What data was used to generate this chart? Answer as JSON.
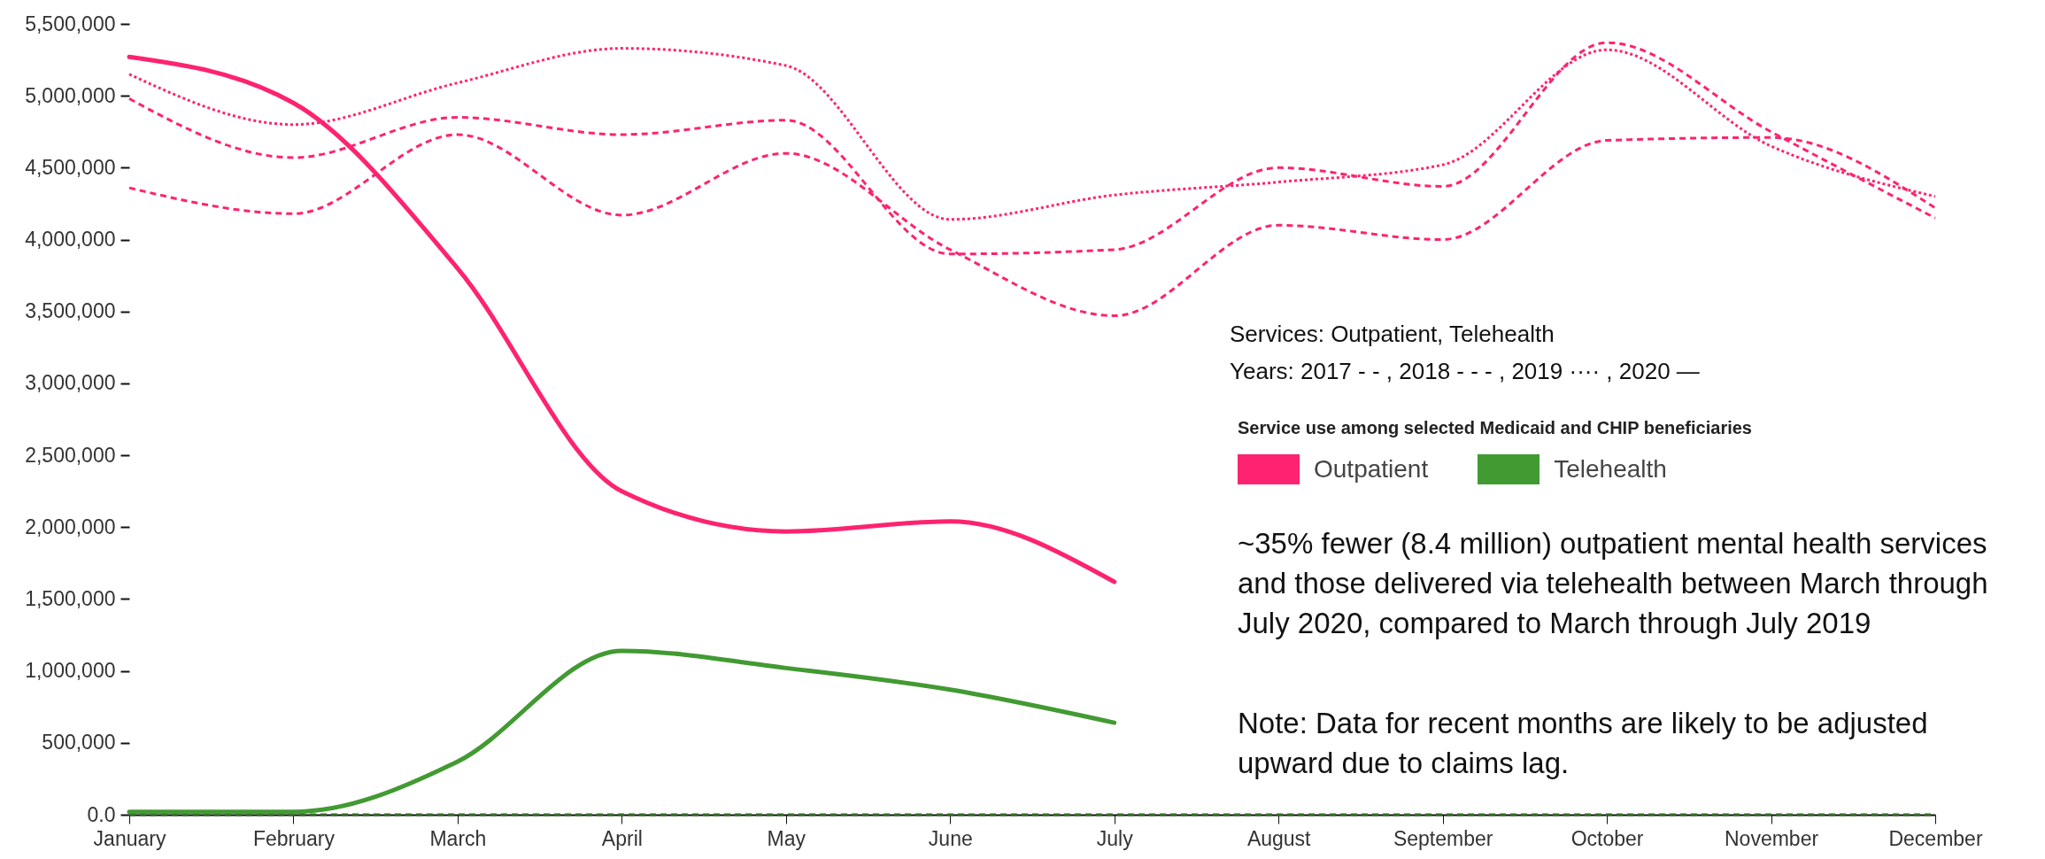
{
  "chart_data": {
    "type": "line",
    "categories": [
      "January",
      "February",
      "March",
      "April",
      "May",
      "June",
      "July",
      "August",
      "September",
      "October",
      "November",
      "December"
    ],
    "ylim": [
      0,
      5500000
    ],
    "yticks": [
      {
        "value": 0,
        "label": "0.0"
      },
      {
        "value": 500000,
        "label": "500,000"
      },
      {
        "value": 1000000,
        "label": "1,000,000"
      },
      {
        "value": 1500000,
        "label": "1,500,000"
      },
      {
        "value": 2000000,
        "label": "2,000,000"
      },
      {
        "value": 2500000,
        "label": "2,500,000"
      },
      {
        "value": 3000000,
        "label": "3,000,000"
      },
      {
        "value": 3500000,
        "label": "3,500,000"
      },
      {
        "value": 4000000,
        "label": "4,000,000"
      },
      {
        "value": 4500000,
        "label": "4,500,000"
      },
      {
        "value": 5000000,
        "label": "5,000,000"
      },
      {
        "value": 5500000,
        "label": "5,500,000"
      }
    ],
    "legend": "right",
    "legend_title": "Service use among selected Medicaid and CHIP beneficiaries",
    "series": [
      {
        "color": "#fe2370",
        "line_style": "dashed",
        "values": [
          4360000,
          4180000,
          4730000,
          4170000,
          4600000,
          3930000,
          3470000,
          4100000,
          4000000,
          4690000,
          4710000,
          4220000
        ]
      },
      {
        "color": "#fe2370",
        "line_style": "dashed",
        "values": [
          4980000,
          4570000,
          4850000,
          4730000,
          4830000,
          3900000,
          3930000,
          4500000,
          4370000,
          5370000,
          4750000,
          4150000
        ]
      },
      {
        "color": "#fe2370",
        "line_style": "dotted",
        "values": [
          5150000,
          4800000,
          5090000,
          5330000,
          5210000,
          4140000,
          4310000,
          4400000,
          4520000,
          5320000,
          4650000,
          4300000
        ]
      },
      {
        "name": "Outpatient",
        "color": "#fe2370",
        "line_style": "solid",
        "values": [
          5270000,
          4950000,
          3800000,
          2250000,
          1970000,
          2040000,
          1620000,
          null,
          null,
          null,
          null,
          null
        ]
      },
      {
        "color": "#2f6b22",
        "line_style": "dashed",
        "values": [
          0,
          0,
          0,
          0,
          0,
          0,
          0,
          0,
          0,
          0,
          0,
          0
        ]
      },
      {
        "name": "Telehealth",
        "color": "#429a32",
        "line_style": "solid",
        "values": [
          20000,
          20000,
          370000,
          1140000,
          1020000,
          870000,
          640000,
          null,
          null,
          null,
          null,
          null
        ]
      }
    ],
    "annotations": [
      "Services: Outpatient, Telehealth",
      "Years: 2017 - -  , 2018 - - - , 2019 ···· , 2020 —",
      "~35% fewer (8.4 million) outpatient mental health services and those delivered via telehealth between March through July 2020, compared to March through July 2019",
      "Note: Data for recent months are likely to be adjusted upward due to claims lag."
    ]
  }
}
